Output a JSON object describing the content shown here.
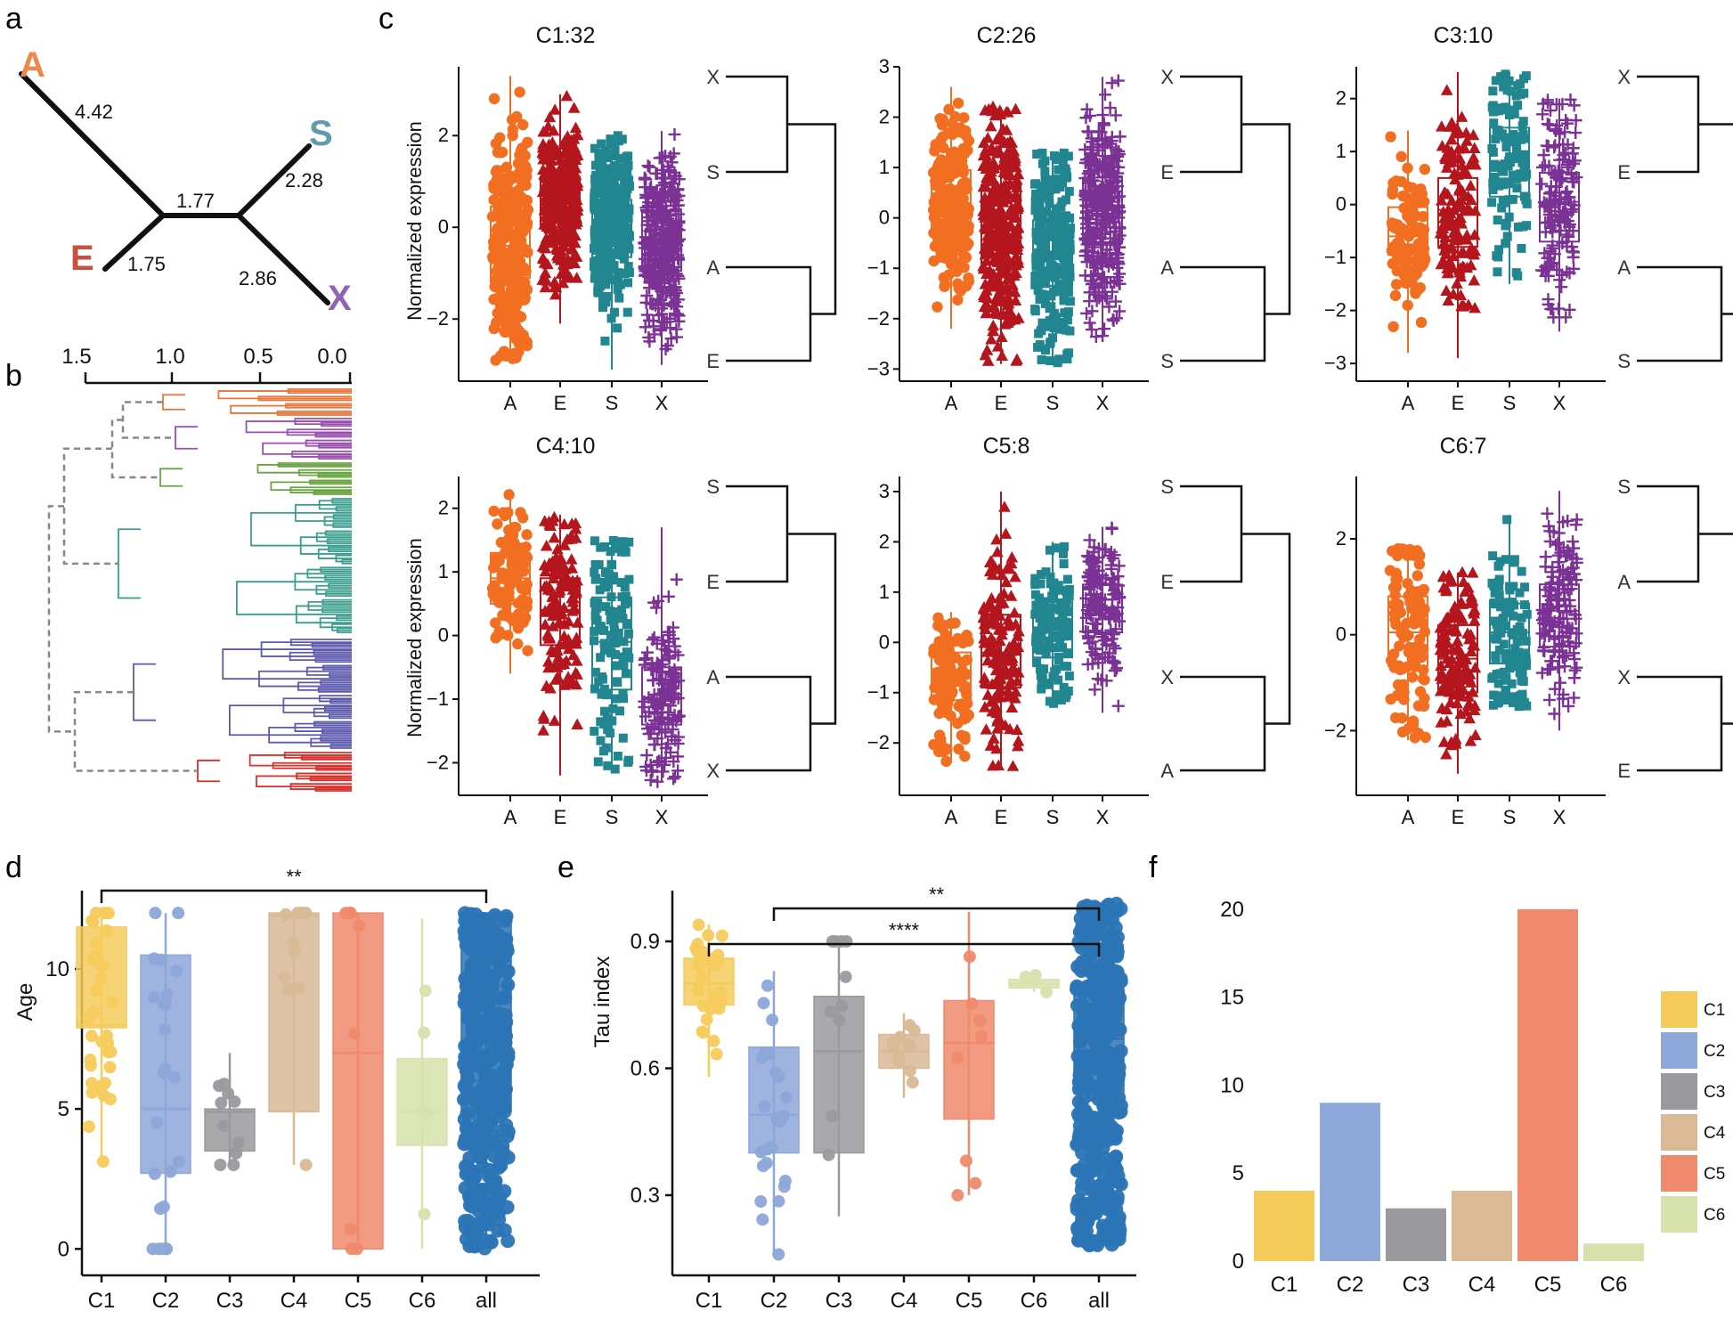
{
  "colors": {
    "A": "#F26E21",
    "E": "#B5161E",
    "S": "#21868F",
    "X": "#7B3294",
    "C1": "#F5CB5C",
    "C2": "#8DA7D9",
    "C3": "#9A9A9E",
    "C4": "#D9B996",
    "C5": "#EF8A6C",
    "C6": "#D7E2AD",
    "all": "#2B74B5",
    "dend": [
      "#E8763A",
      "#9B4FB0",
      "#6BA542",
      "#3A9E8E",
      "#5E5AAE",
      "#D9302B"
    ]
  },
  "panels": {
    "a": "a",
    "b": "b",
    "c": "c",
    "d": "d",
    "e": "e",
    "f": "f"
  },
  "tree": {
    "tips": [
      "A",
      "S",
      "E",
      "X"
    ],
    "branches": [
      "4.42",
      "1.77",
      "2.28",
      "1.75",
      "2.86"
    ]
  },
  "dendrogram": {
    "axis_ticks": [
      "1.5",
      "1.0",
      "0.5",
      "0.0"
    ]
  },
  "chart_data": [
    {
      "panel": "c",
      "type": "boxplot-grid",
      "ylabel": "Normalized expression",
      "categories": [
        "A",
        "E",
        "S",
        "X"
      ],
      "subplots": [
        {
          "title": "C1:32",
          "yticks": [
            "2",
            "0",
            "−2"
          ],
          "ylim": [
            -3.2,
            3.5
          ],
          "boxes": [
            {
              "q1": -1.1,
              "med": -0.4,
              "q3": 0.45,
              "lo": -2.9,
              "hi": 3.3
            },
            {
              "q1": 0.0,
              "med": 0.55,
              "q3": 1.1,
              "lo": -2.1,
              "hi": 2.9
            },
            {
              "q1": -0.65,
              "med": 0.05,
              "q3": 0.6,
              "lo": -3.1,
              "hi": 2.0
            },
            {
              "q1": -0.95,
              "med": -0.35,
              "q3": 0.35,
              "lo": -3.0,
              "hi": 2.1
            }
          ],
          "tree_order": [
            "X",
            "S",
            "A",
            "E"
          ]
        },
        {
          "title": "C2:26",
          "yticks": [
            "3",
            "2",
            "1",
            "0",
            "−1",
            "−2",
            "−3"
          ],
          "ylim": [
            -3.1,
            3.0
          ],
          "boxes": [
            {
              "q1": -0.2,
              "med": 0.3,
              "q3": 0.95,
              "lo": -2.2,
              "hi": 2.6
            },
            {
              "q1": -0.9,
              "med": -0.2,
              "q3": 0.65,
              "lo": -2.9,
              "hi": 2.2
            },
            {
              "q1": -1.35,
              "med": -0.7,
              "q3": -0.05,
              "lo": -2.9,
              "hi": 1.3
            },
            {
              "q1": -0.5,
              "med": 0.2,
              "q3": 0.8,
              "lo": -2.4,
              "hi": 2.8
            }
          ],
          "tree_order": [
            "X",
            "E",
            "A",
            "S"
          ]
        },
        {
          "title": "C3:10",
          "yticks": [
            "2",
            "1",
            "0",
            "−1",
            "−2",
            "−3"
          ],
          "ylim": [
            -3.2,
            2.6
          ],
          "boxes": [
            {
              "q1": -0.95,
              "med": -0.6,
              "q3": -0.05,
              "lo": -2.8,
              "hi": 1.4
            },
            {
              "q1": -0.8,
              "med": -0.1,
              "q3": 0.5,
              "lo": -2.9,
              "hi": 2.5
            },
            {
              "q1": 0.15,
              "med": 0.8,
              "q3": 1.45,
              "lo": -1.5,
              "hi": 2.5
            },
            {
              "q1": -0.7,
              "med": 0.05,
              "q3": 0.6,
              "lo": -2.4,
              "hi": 2.0
            }
          ],
          "tree_order": [
            "X",
            "E",
            "A",
            "S"
          ]
        },
        {
          "title": "C4:10",
          "yticks": [
            "2",
            "1",
            "0",
            "−1",
            "−2"
          ],
          "ylim": [
            -2.4,
            2.5
          ],
          "boxes": [
            {
              "q1": 0.5,
              "med": 0.9,
              "q3": 1.3,
              "lo": -0.6,
              "hi": 2.3
            },
            {
              "q1": -0.15,
              "med": 0.4,
              "q3": 0.9,
              "lo": -2.2,
              "hi": 1.9
            },
            {
              "q1": -0.85,
              "med": -0.1,
              "q3": 0.6,
              "lo": -2.1,
              "hi": 1.5
            },
            {
              "q1": -1.4,
              "med": -1.0,
              "q3": -0.5,
              "lo": -2.3,
              "hi": 1.7
            }
          ],
          "tree_order": [
            "S",
            "E",
            "A",
            "X"
          ]
        },
        {
          "title": "C5:8",
          "yticks": [
            "3",
            "2",
            "1",
            "0",
            "−1",
            "−2"
          ],
          "ylim": [
            -2.9,
            3.3
          ],
          "boxes": [
            {
              "q1": -1.15,
              "med": -0.7,
              "q3": -0.2,
              "lo": -2.4,
              "hi": 0.6
            },
            {
              "q1": -0.9,
              "med": -0.2,
              "q3": 0.55,
              "lo": -2.5,
              "hi": 3.0
            },
            {
              "q1": -0.3,
              "med": 0.3,
              "q3": 0.8,
              "lo": -1.3,
              "hi": 2.0
            },
            {
              "q1": 0.2,
              "med": 0.7,
              "q3": 1.15,
              "lo": -1.4,
              "hi": 2.3
            }
          ],
          "tree_order": [
            "S",
            "E",
            "X",
            "A"
          ]
        },
        {
          "title": "C6:7",
          "yticks": [
            "2",
            "0",
            "−2"
          ],
          "ylim": [
            -3.2,
            3.3
          ],
          "boxes": [
            {
              "q1": -0.65,
              "med": 0.05,
              "q3": 0.8,
              "lo": -2.2,
              "hi": 1.8
            },
            {
              "q1": -1.2,
              "med": -0.5,
              "q3": 0.2,
              "lo": -2.9,
              "hi": 1.3
            },
            {
              "q1": -0.6,
              "med": 0.05,
              "q3": 0.65,
              "lo": -1.5,
              "hi": 2.5
            },
            {
              "q1": -0.25,
              "med": 0.5,
              "q3": 1.05,
              "lo": -2.0,
              "hi": 3.0
            }
          ],
          "tree_order": [
            "S",
            "A",
            "X",
            "E"
          ]
        }
      ]
    },
    {
      "panel": "d",
      "type": "boxplot",
      "ylabel": "Age",
      "categories": [
        "C1",
        "C2",
        "C3",
        "C4",
        "C5",
        "C6",
        "all"
      ],
      "yticks": [
        "0",
        "5",
        "10"
      ],
      "ylim": [
        -0.5,
        12.8
      ],
      "boxes": [
        {
          "q1": 7.9,
          "med": 8.0,
          "q3": 11.5,
          "lo": 3.0,
          "hi": 12.0
        },
        {
          "q1": 2.7,
          "med": 5.0,
          "q3": 10.5,
          "lo": 0.0,
          "hi": 12.0
        },
        {
          "q1": 3.5,
          "med": 4.9,
          "q3": 5.0,
          "lo": 3.0,
          "hi": 7.0
        },
        {
          "q1": 4.9,
          "med": 11.9,
          "q3": 12.0,
          "lo": 3.0,
          "hi": 12.0
        },
        {
          "q1": 0.0,
          "med": 7.0,
          "q3": 12.0,
          "lo": 0.0,
          "hi": 12.0
        },
        {
          "q1": 3.7,
          "med": 4.9,
          "q3": 6.8,
          "lo": 0.0,
          "hi": 11.8
        },
        {
          "q1": 4.9,
          "med": 6.0,
          "q3": 12.0,
          "lo": 0.0,
          "hi": 12.0
        }
      ],
      "significance": [
        {
          "from": "C1",
          "to": "all",
          "label": "**"
        }
      ]
    },
    {
      "panel": "e",
      "type": "boxplot",
      "ylabel": "Tau index",
      "categories": [
        "C1",
        "C2",
        "C3",
        "C4",
        "C5",
        "C6",
        "all"
      ],
      "yticks": [
        "0.3",
        "0.6",
        "0.9"
      ],
      "ylim": [
        0.14,
        1.02
      ],
      "boxes": [
        {
          "q1": 0.75,
          "med": 0.8,
          "q3": 0.86,
          "lo": 0.58,
          "hi": 0.94
        },
        {
          "q1": 0.4,
          "med": 0.49,
          "q3": 0.65,
          "lo": 0.16,
          "hi": 0.83
        },
        {
          "q1": 0.4,
          "med": 0.64,
          "q3": 0.77,
          "lo": 0.25,
          "hi": 0.9
        },
        {
          "q1": 0.6,
          "med": 0.64,
          "q3": 0.68,
          "lo": 0.53,
          "hi": 0.73
        },
        {
          "q1": 0.48,
          "med": 0.66,
          "q3": 0.76,
          "lo": 0.3,
          "hi": 0.97
        },
        {
          "q1": 0.79,
          "med": 0.8,
          "q3": 0.81,
          "lo": 0.78,
          "hi": 0.82
        },
        {
          "q1": 0.54,
          "med": 0.67,
          "q3": 0.78,
          "lo": 0.17,
          "hi": 0.99
        }
      ],
      "significance": [
        {
          "from": "C2",
          "to": "all",
          "label": "**"
        },
        {
          "from": "C1",
          "to": "all",
          "label": "****"
        }
      ]
    },
    {
      "panel": "f",
      "type": "bar",
      "categories": [
        "C1",
        "C2",
        "C3",
        "C4",
        "C5",
        "C6"
      ],
      "values": [
        4,
        9,
        3,
        4,
        20,
        1
      ],
      "yticks": [
        "0",
        "5",
        "10",
        "15",
        "20"
      ],
      "ylim": [
        0,
        20.5
      ],
      "legend": [
        "C1",
        "C2",
        "C3",
        "C4",
        "C5",
        "C6"
      ]
    }
  ]
}
